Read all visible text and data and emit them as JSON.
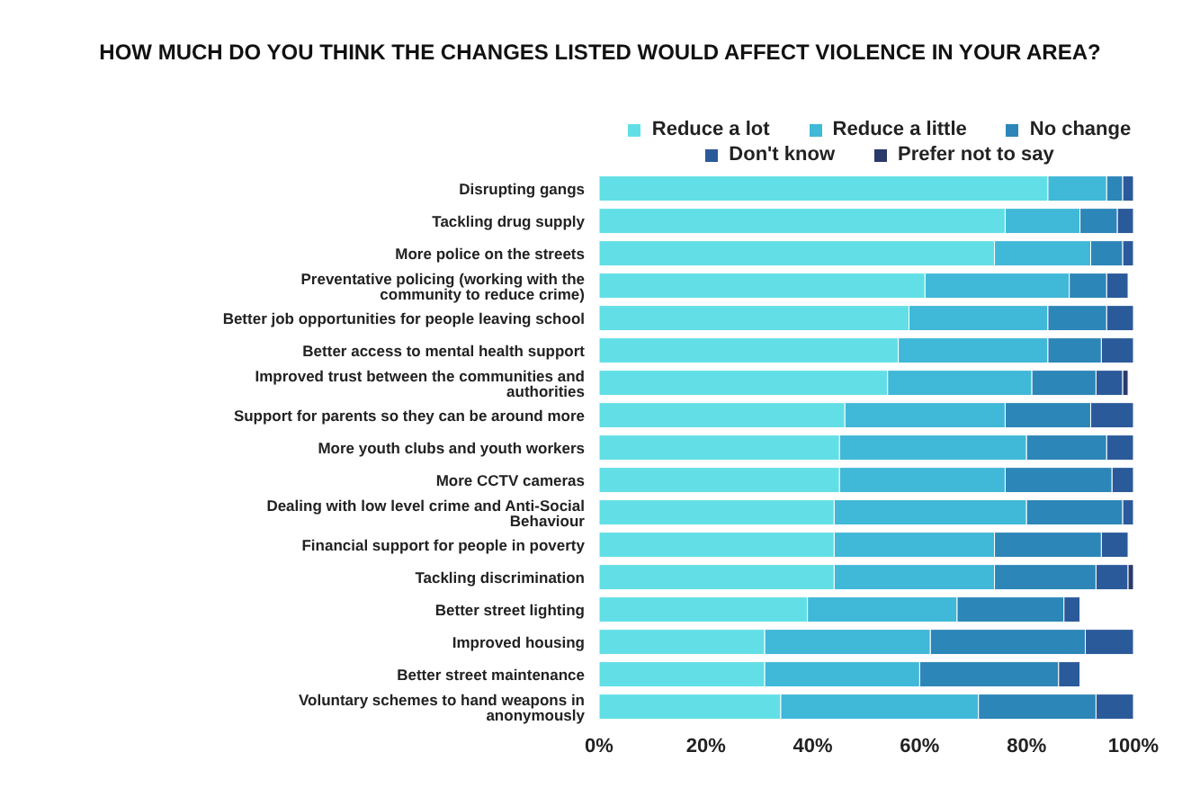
{
  "chart_data": {
    "type": "bar",
    "orientation": "horizontal",
    "stacked": true,
    "title": "HOW MUCH DO YOU THINK THE CHANGES LISTED WOULD AFFECT VIOLENCE IN YOUR AREA?",
    "categories": [
      "Disrupting gangs",
      "Tackling drug supply",
      "More police on the streets",
      "Preventative policing (working with the community to reduce crime)",
      "Better job opportunities for people leaving school",
      "Better access to mental health support",
      "Improved trust between the communities and authorities",
      "Support for parents so they can be around more",
      "More youth clubs and youth workers",
      "More CCTV cameras",
      "Dealing with low level crime and Anti-Social Behaviour",
      "Financial support for people in poverty",
      "Tackling discrimination",
      "Better street lighting",
      "Improved housing",
      "Better street maintenance",
      "Voluntary schemes to hand weapons in anonymously"
    ],
    "series": [
      {
        "name": "Reduce a lot",
        "color": "#62dfe6",
        "values": [
          84,
          76,
          74,
          61,
          58,
          56,
          54,
          46,
          45,
          45,
          44,
          44,
          44,
          39,
          31,
          31,
          34
        ]
      },
      {
        "name": "Reduce a little",
        "color": "#40b8d8",
        "values": [
          11,
          14,
          18,
          27,
          26,
          28,
          27,
          30,
          35,
          31,
          36,
          30,
          30,
          28,
          31,
          29,
          37
        ]
      },
      {
        "name": "No change",
        "color": "#2c86b8",
        "values": [
          3,
          7,
          6,
          7,
          11,
          10,
          12,
          16,
          15,
          20,
          18,
          20,
          19,
          20,
          29,
          26,
          22
        ]
      },
      {
        "name": "Don't know",
        "color": "#2b5a9a",
        "values": [
          2,
          3,
          2,
          4,
          5,
          6,
          5,
          8,
          5,
          4,
          2,
          5,
          6,
          3,
          9,
          4,
          7
        ]
      },
      {
        "name": "Prefer not to say",
        "color": "#2a3a6a",
        "values": [
          0,
          0,
          0,
          0,
          0,
          0,
          1,
          0,
          0,
          0,
          0,
          0,
          1,
          0,
          0,
          0,
          0
        ]
      }
    ],
    "xlim": [
      0,
      100
    ],
    "xticks": [
      {
        "value": 0,
        "label": "0%"
      },
      {
        "value": 20,
        "label": "20%"
      },
      {
        "value": 40,
        "label": "40%"
      },
      {
        "value": 60,
        "label": "60%"
      },
      {
        "value": 80,
        "label": "80%"
      },
      {
        "value": 100,
        "label": "100%"
      }
    ],
    "grid": false,
    "legend": "top right"
  }
}
